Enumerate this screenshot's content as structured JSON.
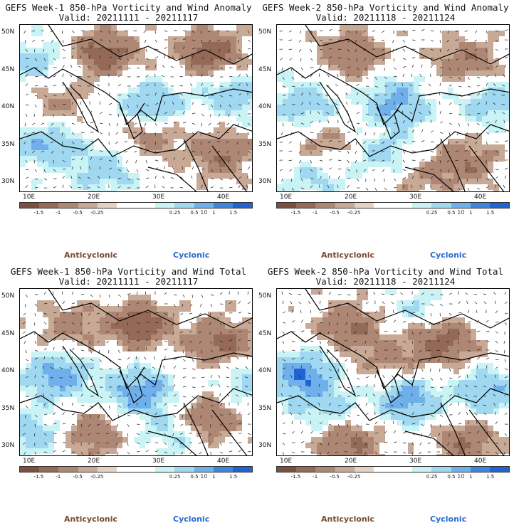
{
  "panels": [
    {
      "title": "GEFS Week-1 850-hPa Vorticity and Wind Anomaly",
      "valid": "Valid: 20211111 - 20211117",
      "variant": 0
    },
    {
      "title": "GEFS Week-2 850-hPa Vorticity and Wind Anomaly",
      "valid": "Valid: 20211118 - 20211124",
      "variant": 1
    },
    {
      "title": "GEFS Week-1 850-hPa Vorticity and Wind Total",
      "valid": "Valid: 20211111 - 20211117",
      "variant": 2
    },
    {
      "title": "GEFS Week-2 850-hPa Vorticity and Wind Total",
      "valid": "Valid: 20211118 - 20211124",
      "variant": 3
    }
  ],
  "lat_labels": [
    "50N",
    "45N",
    "40N",
    "35N",
    "30N"
  ],
  "lon_labels": [
    "10E",
    "20E",
    "30E",
    "40E"
  ],
  "colorbar": {
    "labels": [
      "-1.5",
      "-1",
      "-0.5",
      "-0.25",
      "0.25",
      "0.5",
      "1",
      "1.5"
    ],
    "unit": "10",
    "colors": [
      "#7b5041",
      "#946a56",
      "#ad8774",
      "#c8a996",
      "#e6d2c4",
      "#ffffff",
      "#ffffff",
      "#c9f3f5",
      "#9fd8f0",
      "#6fb0ec",
      "#3d86e0",
      "#1f63d4"
    ]
  },
  "legend": {
    "anticyclonic": "Anticyclonic",
    "cyclonic": "Cyclonic"
  },
  "colors": {
    "anti": "#7a4a33",
    "cyc": "#2a6ad0"
  }
}
